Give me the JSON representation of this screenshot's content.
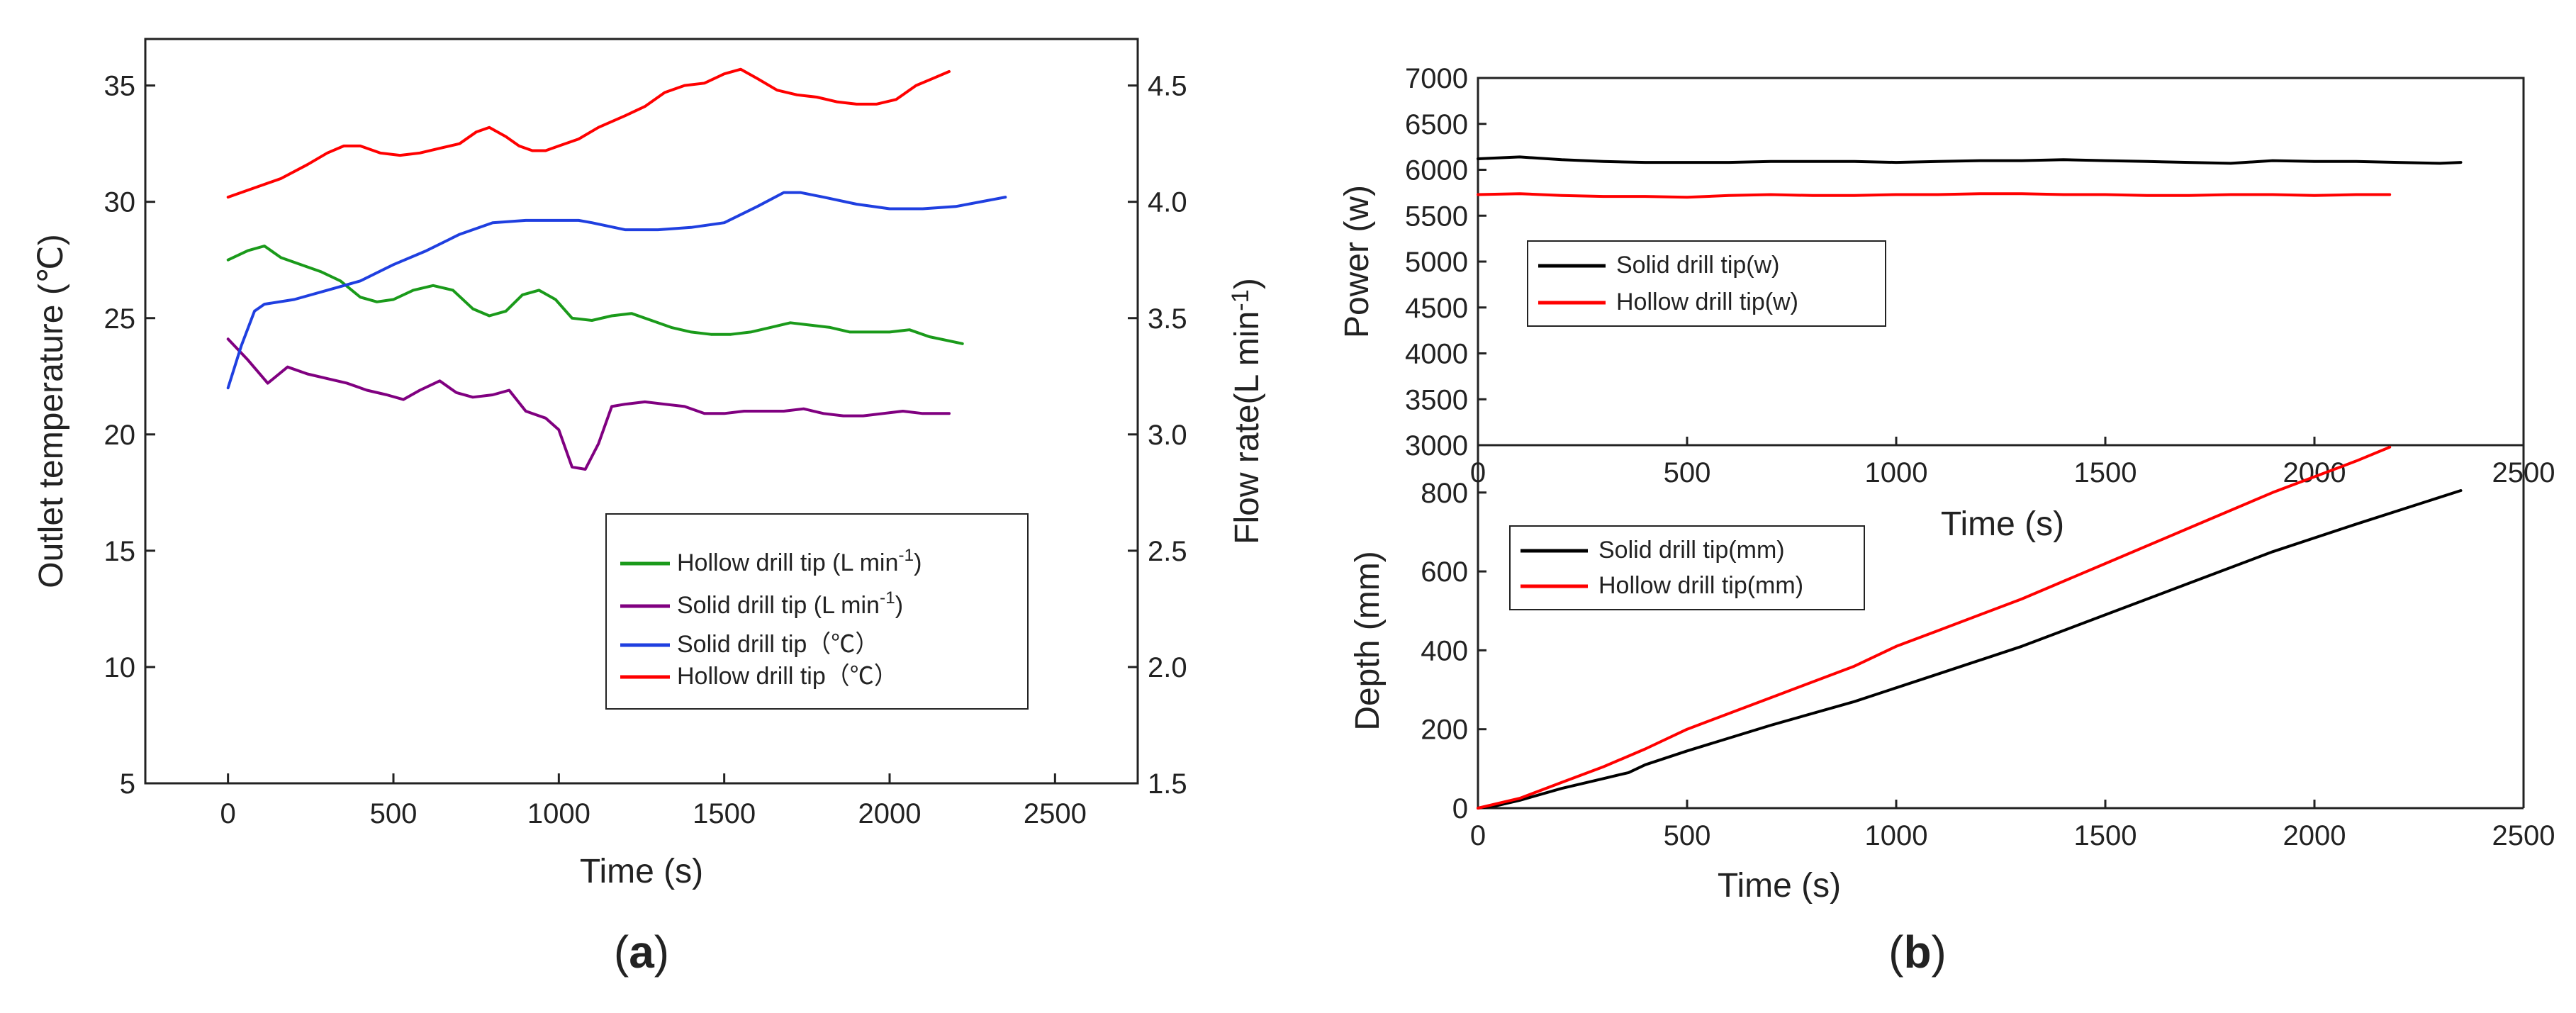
{
  "chart_data": [
    {
      "type": "line",
      "panel": "a",
      "panel_label": {
        "open": "(",
        "letter": "a",
        "close": ")"
      },
      "xlabel": "Time (s)",
      "ylabel": "Outlet temperature (℃)",
      "ylabel_right": "Flow rate(L min⁻¹)",
      "xlim": [
        -250,
        2750
      ],
      "xticks": [
        "0",
        "500",
        "1000",
        "1500",
        "2000",
        "2500"
      ],
      "xtick_values": [
        0,
        500,
        1000,
        1500,
        2000,
        2500
      ],
      "ylim": [
        5,
        37
      ],
      "yticks": [
        "5",
        "10",
        "15",
        "20",
        "25",
        "30",
        "35"
      ],
      "ytick_values": [
        5,
        10,
        15,
        20,
        25,
        30,
        35
      ],
      "ylim_right": [
        1.5,
        4.7
      ],
      "yticks_right": [
        "1.5",
        "2.0",
        "2.5",
        "3.0",
        "3.5",
        "4.0",
        "4.5"
      ],
      "ytick_values_right": [
        1.5,
        2.0,
        2.5,
        3.0,
        3.5,
        4.0,
        4.5
      ],
      "legend_position": "lower-right",
      "series": [
        {
          "name": "Hollow drill tip (L min⁻¹)",
          "color": "#1a9a1a",
          "axis": "right",
          "x": [
            0,
            60,
            110,
            160,
            220,
            280,
            340,
            400,
            450,
            500,
            560,
            620,
            680,
            740,
            790,
            840,
            890,
            940,
            990,
            1040,
            1100,
            1160,
            1220,
            1280,
            1340,
            1400,
            1460,
            1520,
            1580,
            1640,
            1700,
            1760,
            1820,
            1880,
            1940,
            2000,
            2060,
            2120,
            2220
          ],
          "values": [
            3.75,
            3.79,
            3.81,
            3.76,
            3.73,
            3.7,
            3.66,
            3.59,
            3.57,
            3.58,
            3.62,
            3.64,
            3.62,
            3.54,
            3.51,
            3.53,
            3.6,
            3.62,
            3.58,
            3.5,
            3.49,
            3.51,
            3.52,
            3.49,
            3.46,
            3.44,
            3.43,
            3.43,
            3.44,
            3.46,
            3.48,
            3.47,
            3.46,
            3.44,
            3.44,
            3.44,
            3.45,
            3.42,
            3.39
          ]
        },
        {
          "name": "Solid drill tip (L min⁻¹)",
          "color": "#800080",
          "axis": "right",
          "x": [
            0,
            60,
            120,
            180,
            240,
            300,
            360,
            420,
            480,
            530,
            580,
            640,
            690,
            740,
            800,
            850,
            900,
            960,
            1000,
            1040,
            1080,
            1120,
            1160,
            1200,
            1260,
            1320,
            1380,
            1440,
            1500,
            1560,
            1620,
            1680,
            1740,
            1800,
            1860,
            1920,
            1980,
            2040,
            2100,
            2180
          ],
          "values": [
            3.41,
            3.32,
            3.22,
            3.29,
            3.26,
            3.24,
            3.22,
            3.19,
            3.17,
            3.15,
            3.19,
            3.23,
            3.18,
            3.16,
            3.17,
            3.19,
            3.1,
            3.07,
            3.02,
            2.86,
            2.85,
            2.96,
            3.12,
            3.13,
            3.14,
            3.13,
            3.12,
            3.09,
            3.09,
            3.1,
            3.1,
            3.1,
            3.11,
            3.09,
            3.08,
            3.08,
            3.09,
            3.1,
            3.09,
            3.09
          ]
        },
        {
          "name": "Solid drill tip（℃）",
          "color": "#1f3fe0",
          "axis": "left",
          "x": [
            0,
            40,
            80,
            110,
            200,
            300,
            400,
            500,
            600,
            700,
            800,
            900,
            1000,
            1060,
            1100,
            1200,
            1300,
            1400,
            1500,
            1600,
            1680,
            1730,
            1800,
            1900,
            2000,
            2100,
            2200,
            2350
          ],
          "values": [
            22.0,
            23.8,
            25.3,
            25.6,
            25.8,
            26.2,
            26.6,
            27.3,
            27.9,
            28.6,
            29.1,
            29.2,
            29.2,
            29.2,
            29.1,
            28.8,
            28.8,
            28.9,
            29.1,
            29.8,
            30.4,
            30.4,
            30.2,
            29.9,
            29.7,
            29.7,
            29.8,
            30.2
          ]
        },
        {
          "name": "Hollow drill tip（℃）",
          "color": "#ff0000",
          "axis": "left",
          "x": [
            0,
            80,
            160,
            240,
            300,
            350,
            400,
            460,
            520,
            580,
            640,
            700,
            750,
            790,
            840,
            880,
            920,
            960,
            1000,
            1060,
            1120,
            1200,
            1260,
            1320,
            1380,
            1440,
            1500,
            1550,
            1600,
            1660,
            1720,
            1780,
            1840,
            1900,
            1960,
            2020,
            2080,
            2130,
            2180
          ],
          "values": [
            30.2,
            30.6,
            31.0,
            31.6,
            32.1,
            32.4,
            32.4,
            32.1,
            32.0,
            32.1,
            32.3,
            32.5,
            33.0,
            33.2,
            32.8,
            32.4,
            32.2,
            32.2,
            32.4,
            32.7,
            33.2,
            33.7,
            34.1,
            34.7,
            35.0,
            35.1,
            35.5,
            35.7,
            35.3,
            34.8,
            34.6,
            34.5,
            34.3,
            34.2,
            34.2,
            34.4,
            35.0,
            35.3,
            35.6
          ]
        }
      ]
    },
    {
      "type": "line",
      "panel": "b-top",
      "xlabel": "Time (s)",
      "ylabel": "Power (w)",
      "xlim": [
        0,
        2500
      ],
      "xticks": [
        "0",
        "500",
        "1000",
        "1500",
        "2000",
        "2500"
      ],
      "xtick_values": [
        0,
        500,
        1000,
        1500,
        2000,
        2500
      ],
      "ylim": [
        3000,
        7000
      ],
      "yticks": [
        "3000",
        "3500",
        "4000",
        "4500",
        "5000",
        "5500",
        "6000",
        "6500",
        "7000"
      ],
      "ytick_values": [
        3000,
        3500,
        4000,
        4500,
        5000,
        5500,
        6000,
        6500,
        7000
      ],
      "legend_position": "center-left",
      "series": [
        {
          "name": "Solid drill tip(w)",
          "color": "#000000",
          "x": [
            0,
            100,
            200,
            300,
            400,
            500,
            600,
            700,
            800,
            900,
            1000,
            1100,
            1200,
            1300,
            1400,
            1500,
            1600,
            1700,
            1800,
            1900,
            2000,
            2100,
            2200,
            2300,
            2350
          ],
          "values": [
            6120,
            6140,
            6110,
            6090,
            6080,
            6080,
            6080,
            6090,
            6090,
            6090,
            6080,
            6090,
            6100,
            6100,
            6110,
            6100,
            6090,
            6080,
            6070,
            6100,
            6090,
            6090,
            6080,
            6070,
            6080
          ]
        },
        {
          "name": "Hollow drill tip(w)",
          "color": "#ff0000",
          "x": [
            0,
            100,
            200,
            300,
            400,
            500,
            600,
            700,
            800,
            900,
            1000,
            1100,
            1200,
            1300,
            1400,
            1500,
            1600,
            1700,
            1800,
            1900,
            2000,
            2100,
            2180
          ],
          "values": [
            5730,
            5740,
            5720,
            5710,
            5710,
            5700,
            5720,
            5730,
            5720,
            5720,
            5730,
            5730,
            5740,
            5740,
            5730,
            5730,
            5720,
            5720,
            5730,
            5730,
            5720,
            5730,
            5730
          ]
        }
      ]
    },
    {
      "type": "line",
      "panel": "b-bottom",
      "panel_label": {
        "open": "(",
        "letter": "b",
        "close": ")"
      },
      "xlabel": "Time (s)",
      "ylabel": "Depth (mm)",
      "xlim": [
        0,
        2500
      ],
      "xticks": [
        "0",
        "500",
        "1000",
        "1500",
        "2000",
        "2500"
      ],
      "xtick_values": [
        0,
        500,
        1000,
        1500,
        2000,
        2500
      ],
      "ylim": [
        0,
        920
      ],
      "yticks": [
        "0",
        "200",
        "400",
        "600",
        "800"
      ],
      "ytick_values": [
        0,
        200,
        400,
        600,
        800
      ],
      "legend_position": "top-left",
      "series": [
        {
          "name": "Solid drill tip(mm)",
          "color": "#000000",
          "x": [
            0,
            40,
            100,
            200,
            300,
            360,
            400,
            500,
            700,
            900,
            1100,
            1300,
            1500,
            1700,
            1900,
            2100,
            2350
          ],
          "values": [
            0,
            5,
            20,
            50,
            75,
            90,
            110,
            145,
            210,
            270,
            340,
            410,
            490,
            570,
            650,
            720,
            805
          ]
        },
        {
          "name": "Hollow drill tip(mm)",
          "color": "#ff0000",
          "x": [
            0,
            100,
            200,
            300,
            400,
            500,
            700,
            900,
            1000,
            1100,
            1300,
            1500,
            1700,
            1900,
            2100,
            2180
          ],
          "values": [
            0,
            25,
            65,
            105,
            150,
            200,
            280,
            360,
            410,
            450,
            530,
            620,
            710,
            800,
            880,
            915
          ]
        }
      ]
    }
  ]
}
